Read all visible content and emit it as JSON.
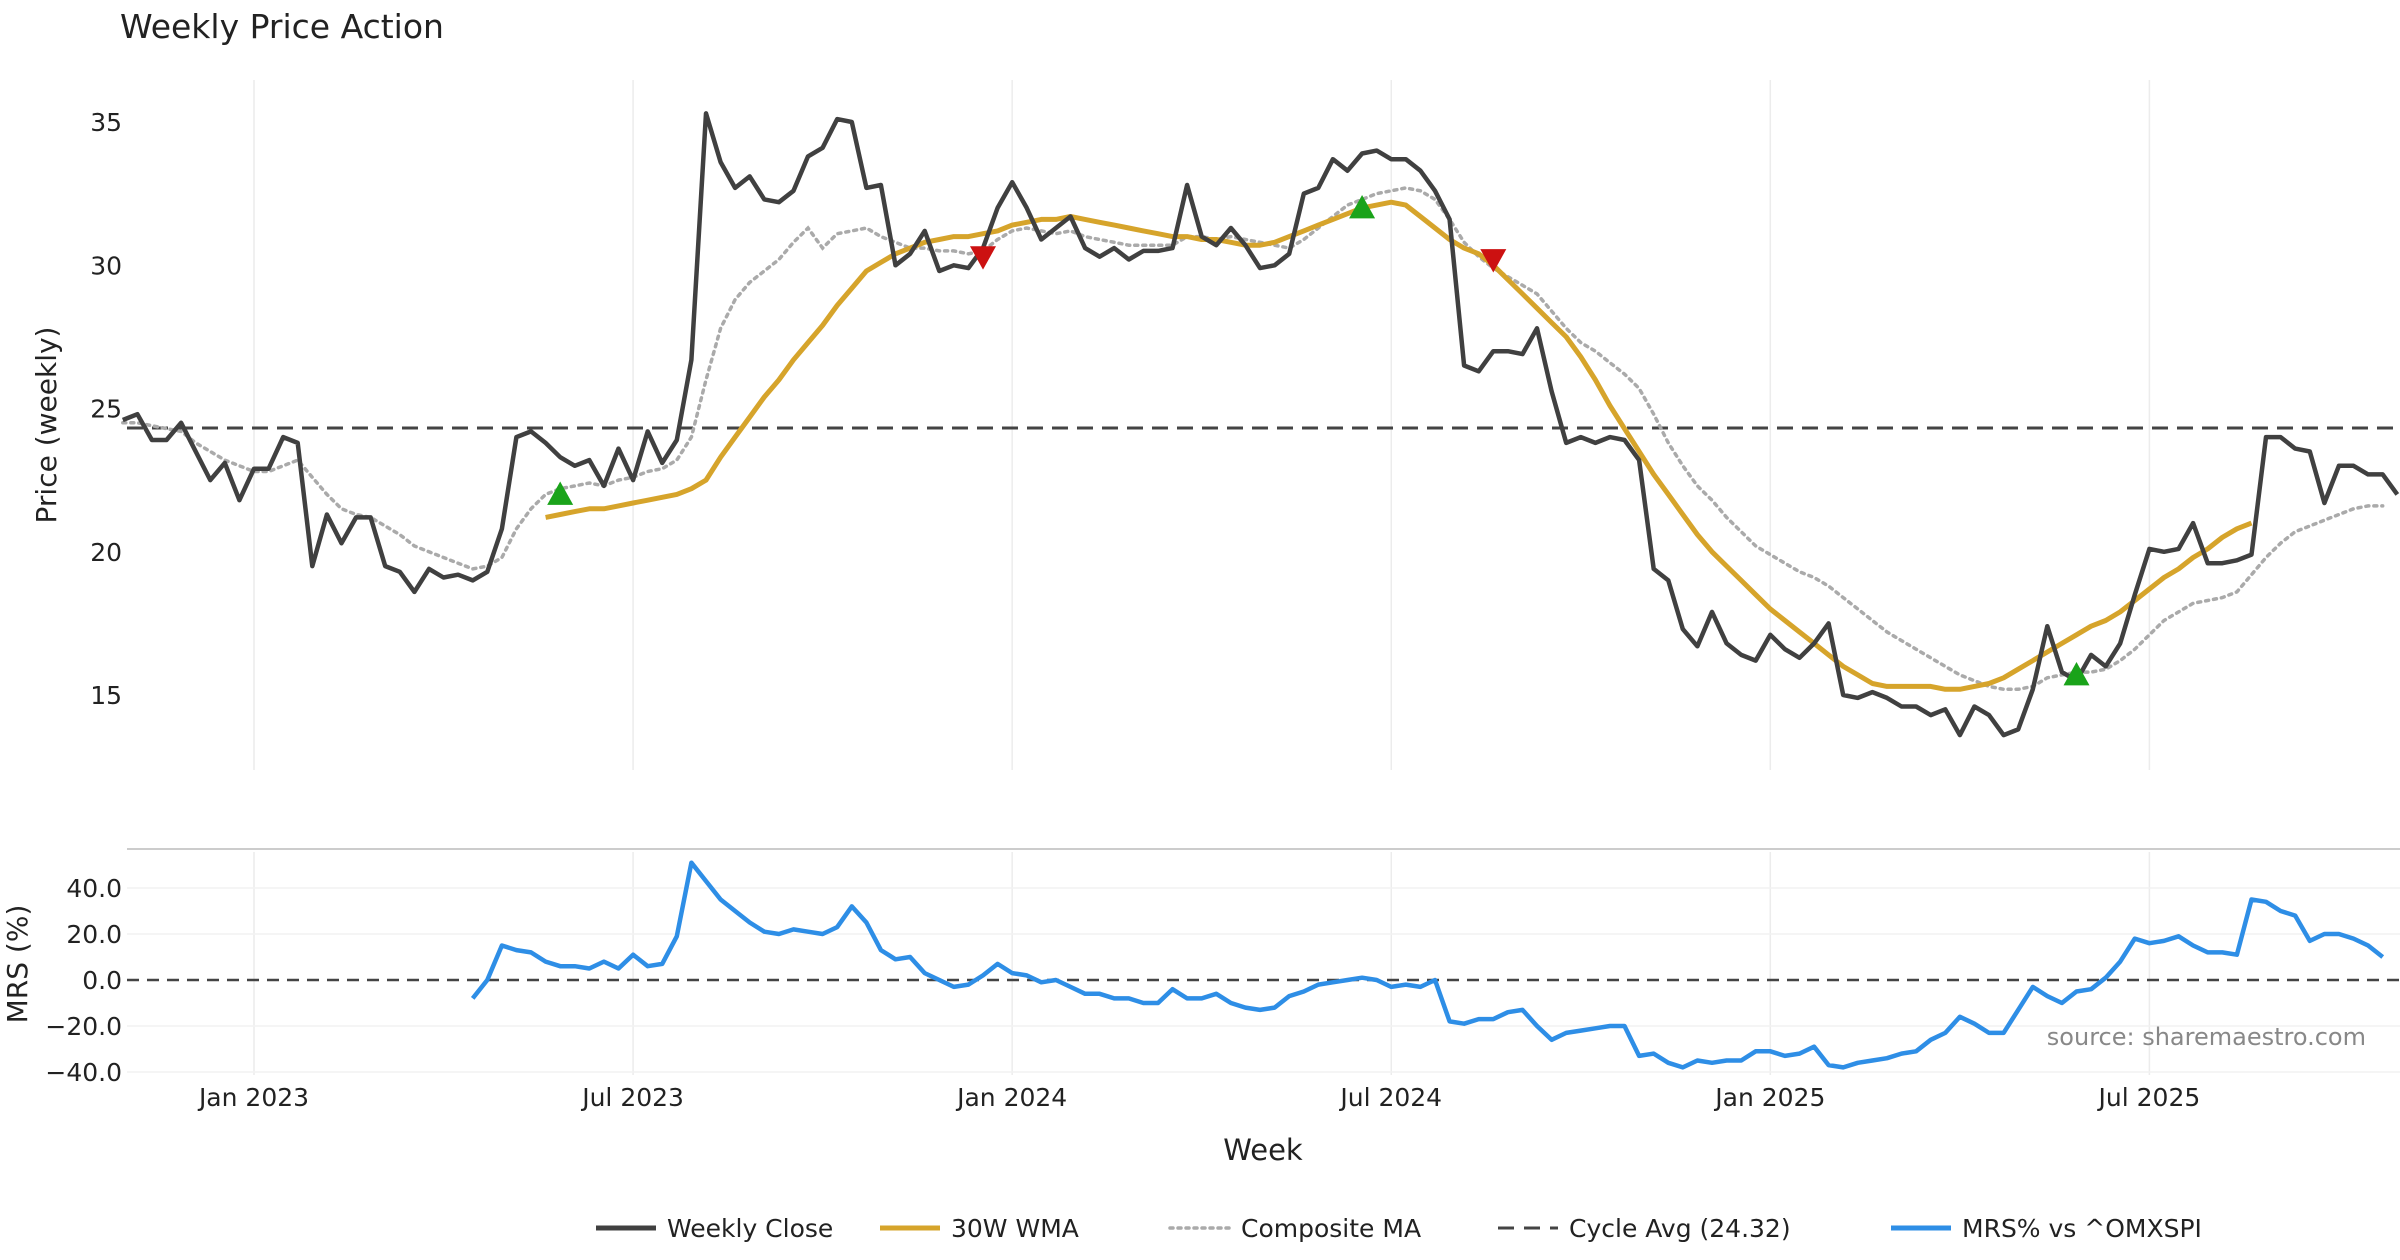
{
  "chart_data": {
    "type": "line",
    "title": "Weekly Price Action",
    "xlabel": "Week",
    "source": "source: sharemaestro.com",
    "x_ticks": [
      {
        "label": "Jan 2023",
        "week": 10
      },
      {
        "label": "Jul 2023",
        "week": 36
      },
      {
        "label": "Jan 2024",
        "week": 62
      },
      {
        "label": "Jul 2024",
        "week": 88
      },
      {
        "label": "Jan 2025",
        "week": 114
      },
      {
        "label": "Jul 2025",
        "week": 140
      }
    ],
    "x_range": [
      1,
      157
    ],
    "price_panel": {
      "ylabel": "Price (weekly)",
      "ylim": [
        12.5,
        36.5
      ],
      "yticks": [
        "15",
        "20",
        "25",
        "30",
        "35"
      ],
      "cycle_avg": 24.32
    },
    "mrs_panel": {
      "ylabel": "MRS (%)",
      "ylim": [
        -42,
        58
      ],
      "yticks": [
        "−40.0",
        "−20.0",
        "0.0",
        "20.0",
        "40.0"
      ],
      "zero_line": 0
    },
    "legend": [
      {
        "label": "Weekly Close",
        "color": "#404040",
        "style": "solid"
      },
      {
        "label": "30W WMA",
        "color": "#d6a42b",
        "style": "solid"
      },
      {
        "label": "Composite MA",
        "color": "#aaaaaa",
        "style": "dotted"
      },
      {
        "label": "Cycle Avg (24.32)",
        "color": "#444444",
        "style": "dashed"
      },
      {
        "label": "MRS% vs ^OMXSPI",
        "color": "#2e8ee6",
        "style": "solid"
      }
    ],
    "colors": {
      "close": "#404040",
      "wma": "#d6a42b",
      "composite": "#aaaaaa",
      "cycle": "#444444",
      "mrs": "#2e8ee6",
      "buy": "#1aa31a",
      "sell": "#cc1111",
      "grid": "#ececec"
    },
    "series": [
      {
        "name": "Weekly Close",
        "x_start": 1,
        "values": [
          24.6,
          24.8,
          23.9,
          23.9,
          24.5,
          23.5,
          22.5,
          23.1,
          21.8,
          22.9,
          22.9,
          24.0,
          23.8,
          19.5,
          21.3,
          20.3,
          21.2,
          21.2,
          19.5,
          19.3,
          18.6,
          19.4,
          19.1,
          19.2,
          19.0,
          19.3,
          20.8,
          24.0,
          24.2,
          23.8,
          23.3,
          23.0,
          23.2,
          22.3,
          23.6,
          22.5,
          24.2,
          23.1,
          23.9,
          26.7,
          35.3,
          33.6,
          32.7,
          33.1,
          32.3,
          32.2,
          32.6,
          33.8,
          34.1,
          35.1,
          35.0,
          32.7,
          32.8,
          30.0,
          30.4,
          31.2,
          29.8,
          30.0,
          29.9,
          30.6,
          32.0,
          32.9,
          32.0,
          30.9,
          31.3,
          31.7,
          30.6,
          30.3,
          30.6,
          30.2,
          30.5,
          30.5,
          30.6,
          32.8,
          31.0,
          30.7,
          31.3,
          30.7,
          29.9,
          30.0,
          30.4,
          32.5,
          32.7,
          33.7,
          33.3,
          33.9,
          34.0,
          33.7,
          33.7,
          33.3,
          32.6,
          31.6,
          26.5,
          26.3,
          27.0,
          27.0,
          26.9,
          27.8,
          25.6,
          23.8,
          24.0,
          23.8,
          24.0,
          23.9,
          23.2,
          19.4,
          19.0,
          17.3,
          16.7,
          17.9,
          16.8,
          16.4,
          16.2,
          17.1,
          16.6,
          16.3,
          16.8,
          17.5,
          15.0,
          14.9,
          15.1,
          14.9,
          14.6,
          14.6,
          14.3,
          14.5,
          13.6,
          14.6,
          14.3,
          13.6,
          13.8,
          15.2,
          17.4,
          15.8,
          15.5,
          16.4,
          16.0,
          16.8,
          18.5,
          20.1,
          20.0,
          20.1,
          21.0,
          19.6,
          19.6,
          19.7,
          19.9,
          24.0,
          24.0,
          23.6,
          23.5,
          21.7,
          23.0,
          23.0,
          22.7,
          22.7,
          22.0
        ]
      },
      {
        "name": "30W WMA",
        "x_start": 30,
        "values": [
          21.2,
          21.3,
          21.4,
          21.5,
          21.5,
          21.6,
          21.7,
          21.8,
          21.9,
          22.0,
          22.2,
          22.5,
          23.3,
          24.0,
          24.7,
          25.4,
          26.0,
          26.7,
          27.3,
          27.9,
          28.6,
          29.2,
          29.8,
          30.1,
          30.4,
          30.6,
          30.8,
          30.9,
          31.0,
          31.0,
          31.1,
          31.2,
          31.4,
          31.5,
          31.6,
          31.6,
          31.7,
          31.6,
          31.5,
          31.4,
          31.3,
          31.2,
          31.1,
          31.0,
          31.0,
          30.9,
          30.9,
          30.8,
          30.7,
          30.7,
          30.8,
          31.0,
          31.2,
          31.4,
          31.6,
          31.8,
          32.0,
          32.1,
          32.2,
          32.1,
          31.7,
          31.3,
          30.9,
          30.6,
          30.4,
          30.0,
          29.5,
          29.0,
          28.5,
          28.0,
          27.5,
          26.8,
          26.0,
          25.1,
          24.3,
          23.5,
          22.7,
          22.0,
          21.3,
          20.6,
          20.0,
          19.5,
          19.0,
          18.5,
          18.0,
          17.6,
          17.2,
          16.8,
          16.4,
          16.0,
          15.7,
          15.4,
          15.3,
          15.3,
          15.3,
          15.3,
          15.2,
          15.2,
          15.3,
          15.4,
          15.6,
          15.9,
          16.2,
          16.5,
          16.8,
          17.1,
          17.4,
          17.6,
          17.9,
          18.3,
          18.7,
          19.1,
          19.4,
          19.8,
          20.1,
          20.5,
          20.8,
          21.0
        ]
      },
      {
        "name": "Composite MA",
        "x_start": 1,
        "values": [
          24.5,
          24.5,
          24.4,
          24.3,
          24.2,
          23.8,
          23.5,
          23.2,
          23.0,
          22.8,
          22.8,
          23.0,
          23.2,
          22.6,
          22.0,
          21.5,
          21.3,
          21.2,
          20.9,
          20.6,
          20.2,
          20.0,
          19.8,
          19.6,
          19.4,
          19.5,
          19.8,
          20.8,
          21.5,
          22.0,
          22.2,
          22.3,
          22.4,
          22.3,
          22.5,
          22.6,
          22.8,
          22.9,
          23.2,
          24.0,
          26.0,
          27.8,
          28.8,
          29.4,
          29.8,
          30.2,
          30.8,
          31.3,
          30.6,
          31.1,
          31.2,
          31.3,
          31.0,
          30.8,
          30.6,
          30.6,
          30.5,
          30.5,
          30.4,
          30.5,
          30.9,
          31.2,
          31.3,
          31.2,
          31.1,
          31.2,
          31.0,
          30.9,
          30.8,
          30.7,
          30.7,
          30.7,
          30.7,
          31.0,
          31.0,
          30.9,
          31.0,
          30.9,
          30.8,
          30.7,
          30.6,
          30.9,
          31.3,
          31.7,
          32.1,
          32.3,
          32.5,
          32.6,
          32.7,
          32.6,
          32.3,
          31.6,
          30.8,
          30.3,
          29.9,
          29.6,
          29.3,
          29.0,
          28.4,
          27.8,
          27.3,
          27.0,
          26.6,
          26.2,
          25.7,
          24.8,
          23.8,
          23.0,
          22.3,
          21.8,
          21.2,
          20.7,
          20.2,
          19.9,
          19.6,
          19.3,
          19.1,
          18.8,
          18.4,
          18.0,
          17.6,
          17.2,
          16.9,
          16.6,
          16.3,
          16.0,
          15.7,
          15.5,
          15.3,
          15.2,
          15.2,
          15.3,
          15.6,
          15.7,
          15.8,
          15.8,
          15.9,
          16.2,
          16.6,
          17.1,
          17.6,
          17.9,
          18.2,
          18.3,
          18.4,
          18.6,
          19.2,
          19.8,
          20.3,
          20.7,
          20.9,
          21.1,
          21.3,
          21.5,
          21.6,
          21.6
        ]
      },
      {
        "name": "MRS% vs ^OMXSPI",
        "x_start": 25,
        "values": [
          -8,
          0,
          15,
          13,
          12,
          8,
          6,
          6,
          5,
          8,
          5,
          11,
          6,
          7,
          19,
          51,
          43,
          35,
          30,
          25,
          21,
          20,
          22,
          21,
          20,
          23,
          32,
          25,
          13,
          9,
          10,
          3,
          0,
          -3,
          -2,
          2,
          7,
          3,
          2,
          -1,
          0,
          -3,
          -6,
          -6,
          -8,
          -8,
          -10,
          -10,
          -4,
          -8,
          -8,
          -6,
          -10,
          -12,
          -13,
          -12,
          -7,
          -5,
          -2,
          -1,
          0,
          1,
          0,
          -3,
          -2,
          -3,
          0,
          -18,
          -19,
          -17,
          -17,
          -14,
          -13,
          -20,
          -26,
          -23,
          -22,
          -21,
          -20,
          -20,
          -33,
          -32,
          -36,
          -38,
          -35,
          -36,
          -35,
          -35,
          -31,
          -31,
          -33,
          -32,
          -29,
          -37,
          -38,
          -36,
          -35,
          -34,
          -32,
          -31,
          -26,
          -23,
          -16,
          -19,
          -23,
          -23,
          -13,
          -3,
          -7,
          -10,
          -5,
          -4,
          1,
          8,
          18,
          16,
          17,
          19,
          15,
          12,
          12,
          11,
          35,
          34,
          30,
          28,
          17,
          20,
          20,
          18,
          15,
          10
        ]
      }
    ],
    "signals": [
      {
        "type": "buy",
        "week": 31,
        "value": 22.0
      },
      {
        "type": "sell",
        "week": 60,
        "value": 30.3
      },
      {
        "type": "buy",
        "week": 86,
        "value": 32.0
      },
      {
        "type": "sell",
        "week": 95,
        "value": 30.2
      },
      {
        "type": "buy",
        "week": 135,
        "value": 15.7
      }
    ]
  }
}
